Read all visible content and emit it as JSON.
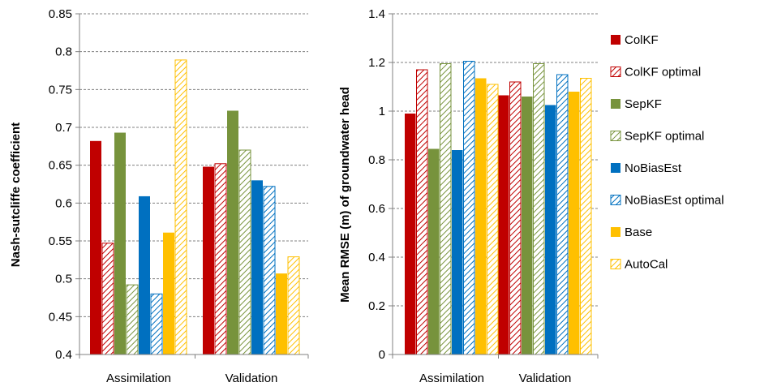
{
  "chart_data": [
    {
      "type": "bar",
      "ylabel": "Nash-sutcliffe coefficient",
      "categories": [
        "Assimilation",
        "Validation"
      ],
      "ylim": [
        0.4,
        0.85
      ],
      "yticks": [
        "0.4",
        "0.45",
        "0.5",
        "0.55",
        "0.6",
        "0.65",
        "0.7",
        "0.75",
        "0.8",
        "0.85"
      ],
      "grid": true,
      "series": [
        {
          "name": "ColKF",
          "values": [
            0.682,
            0.648
          ]
        },
        {
          "name": "ColKF optimal",
          "values": [
            0.547,
            0.652
          ]
        },
        {
          "name": "SepKF",
          "values": [
            0.693,
            0.722
          ]
        },
        {
          "name": "SepKF optimal",
          "values": [
            0.492,
            0.67
          ]
        },
        {
          "name": "NoBiasEst",
          "values": [
            0.609,
            0.63
          ]
        },
        {
          "name": "NoBiasEst optimal",
          "values": [
            0.48,
            0.622
          ]
        },
        {
          "name": "Base",
          "values": [
            0.561,
            0.507
          ]
        },
        {
          "name": "AutoCal",
          "values": [
            0.789,
            0.529
          ]
        }
      ]
    },
    {
      "type": "bar",
      "ylabel": "Mean RMSE (m) of groundwater head",
      "categories": [
        "Assimilation",
        "Validation"
      ],
      "ylim": [
        0,
        1.4
      ],
      "yticks": [
        "0",
        "0.2",
        "0.4",
        "0.6",
        "0.8",
        "1",
        "1.2",
        "1.4"
      ],
      "grid": true,
      "series": [
        {
          "name": "ColKF",
          "values": [
            0.99,
            1.065
          ]
        },
        {
          "name": "ColKF optimal",
          "values": [
            1.17,
            1.12
          ]
        },
        {
          "name": "SepKF",
          "values": [
            0.845,
            1.06
          ]
        },
        {
          "name": "SepKF optimal",
          "values": [
            1.195,
            1.195
          ]
        },
        {
          "name": "NoBiasEst",
          "values": [
            0.84,
            1.025
          ]
        },
        {
          "name": "NoBiasEst optimal",
          "values": [
            1.205,
            1.15
          ]
        },
        {
          "name": "Base",
          "values": [
            1.135,
            1.08
          ]
        },
        {
          "name": "AutoCal",
          "values": [
            1.11,
            1.135
          ]
        }
      ]
    }
  ],
  "legend": {
    "position": "right",
    "entries": [
      "ColKF",
      "ColKF optimal",
      "SepKF",
      "SepKF optimal",
      "NoBiasEst",
      "NoBiasEst optimal",
      "Base",
      "AutoCal"
    ]
  },
  "colors": {
    "ColKF": "#C00000",
    "SepKF": "#77933C",
    "NoBiasEst": "#0070C0",
    "Base": "#FFC000",
    "grid": "#808080",
    "axis": "#808080"
  },
  "styles": {
    "ColKF": "solid",
    "ColKF optimal": "hatched",
    "SepKF": "solid",
    "SepKF optimal": "hatched",
    "NoBiasEst": "solid",
    "NoBiasEst optimal": "hatched",
    "Base": "solid",
    "AutoCal": "hatched"
  },
  "series_colors": {
    "ColKF": "#C00000",
    "ColKF optimal": "#C00000",
    "SepKF": "#77933C",
    "SepKF optimal": "#77933C",
    "NoBiasEst": "#0070C0",
    "NoBiasEst optimal": "#0070C0",
    "Base": "#FFC000",
    "AutoCal": "#FFC000"
  }
}
